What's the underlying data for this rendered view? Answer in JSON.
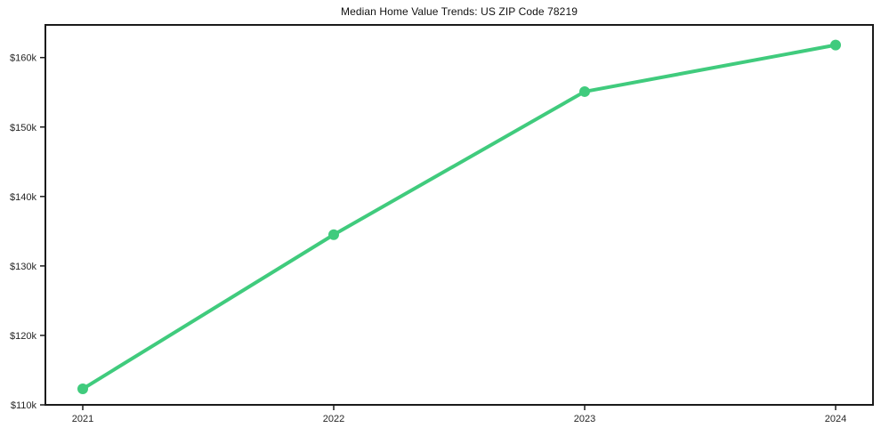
{
  "page": {
    "title": "Median Home Value Trends: US ZIP Code 78219"
  },
  "chart_data": {
    "type": "line",
    "title": "Median Home Value Trends: US ZIP Code 78219",
    "categories": [
      "2021",
      "2022",
      "2023",
      "2024"
    ],
    "values": [
      112300,
      134500,
      155100,
      161800
    ],
    "xlabel": "",
    "ylabel": "",
    "yticks": {
      "values": [
        110000,
        120000,
        130000,
        140000,
        150000,
        160000
      ],
      "labels": [
        "$110k",
        "$120k",
        "$130k",
        "$140k",
        "$150k",
        "$160k"
      ]
    },
    "ylim": [
      110000,
      164700
    ],
    "grid": false,
    "legend": "none",
    "marker": "circle",
    "line_width": 4,
    "marker_radius": 6,
    "colors": {
      "line": "#40cb7d",
      "marker": "#40cb7d",
      "axis": "#1a1a1a",
      "tick_text": "#262626",
      "title_text": "#111111",
      "background": "#ffffff"
    }
  }
}
